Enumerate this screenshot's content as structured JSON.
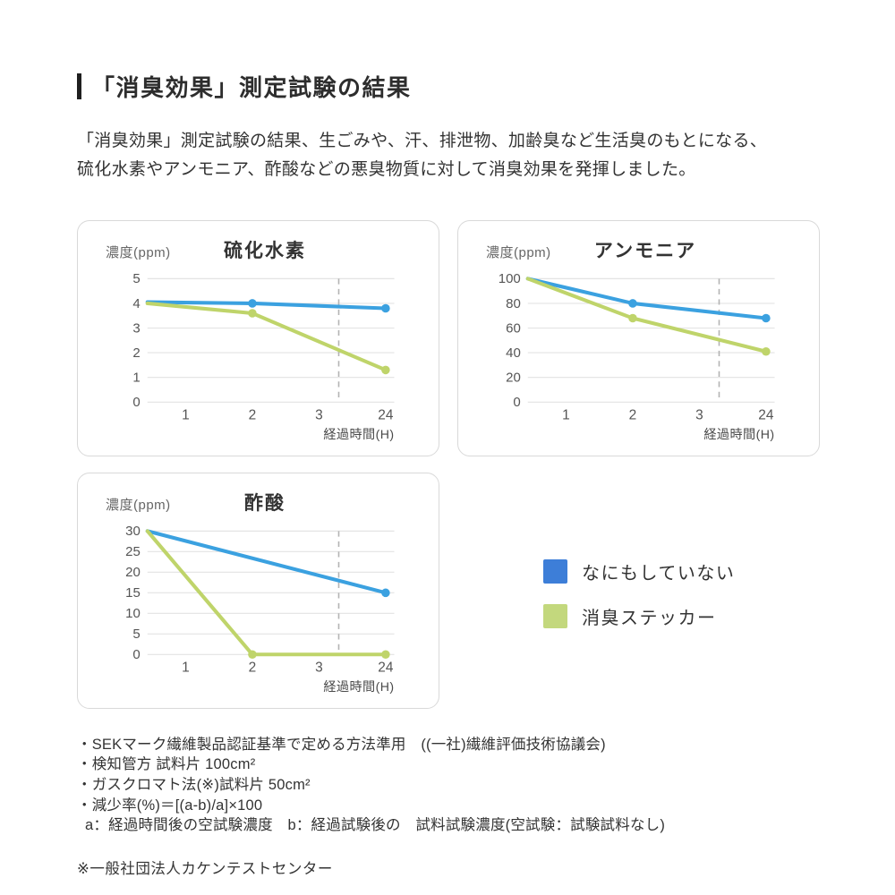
{
  "header": {
    "title": "「消臭効果」測定試験の結果",
    "intro_lines": [
      "「消臭効果」測定試験の結果、生ごみや、汗、排泄物、加齢臭など生活臭のもとになる、",
      "硫化水素やアンモニア、酢酸などの悪臭物質に対して消臭効果を発揮しました。"
    ]
  },
  "legend": {
    "items": [
      {
        "label": "なにもしていない",
        "color": "#3d7ed8"
      },
      {
        "label": "消臭ステッカー",
        "color": "#c3d87d"
      }
    ]
  },
  "colors": {
    "line_blue": "#3ba1e0",
    "line_green": "#bfd46a",
    "gridline": "#e3e3e3",
    "dashed_line": "#b3b3b3",
    "tick_label": "#555555",
    "axis_label": "#4a4a4a"
  },
  "chart_data": [
    {
      "type": "line",
      "title": "硫化水素",
      "ylabel": "濃度(ppm)",
      "xlabel": "経過時間(H)",
      "x_ticks": [
        "1",
        "2",
        "3",
        "24"
      ],
      "y_ticks": [
        5,
        4,
        3,
        2,
        1,
        0
      ],
      "ylim": [
        0,
        5
      ],
      "grid": true,
      "axis_break_after": "3",
      "series": [
        {
          "name": "なにもしていない",
          "color": "#3ba1e0",
          "points": [
            {
              "t": 0,
              "v": 4.05
            },
            {
              "t": 2,
              "v": 4.0,
              "dot": true
            },
            {
              "t": 24,
              "v": 3.8,
              "dot": true
            }
          ]
        },
        {
          "name": "消臭ステッカー",
          "color": "#bfd46a",
          "points": [
            {
              "t": 0,
              "v": 4.0
            },
            {
              "t": 2,
              "v": 3.6,
              "dot": true
            },
            {
              "t": 24,
              "v": 1.3,
              "dot": true
            }
          ]
        }
      ]
    },
    {
      "type": "line",
      "title": "アンモニア",
      "ylabel": "濃度(ppm)",
      "xlabel": "経過時間(H)",
      "x_ticks": [
        "1",
        "2",
        "3",
        "24"
      ],
      "y_ticks": [
        100,
        80,
        60,
        40,
        20,
        0
      ],
      "ylim": [
        0,
        100
      ],
      "grid": true,
      "axis_break_after": "3",
      "series": [
        {
          "name": "なにもしていない",
          "color": "#3ba1e0",
          "points": [
            {
              "t": 0,
              "v": 100
            },
            {
              "t": 2,
              "v": 80,
              "dot": true
            },
            {
              "t": 24,
              "v": 68,
              "dot": true
            }
          ]
        },
        {
          "name": "消臭ステッカー",
          "color": "#bfd46a",
          "points": [
            {
              "t": 0,
              "v": 100
            },
            {
              "t": 2,
              "v": 68,
              "dot": true
            },
            {
              "t": 24,
              "v": 41,
              "dot": true
            }
          ]
        }
      ]
    },
    {
      "type": "line",
      "title": "酢酸",
      "ylabel": "濃度(ppm)",
      "xlabel": "経過時間(H)",
      "x_ticks": [
        "1",
        "2",
        "3",
        "24"
      ],
      "y_ticks": [
        30,
        25,
        20,
        15,
        10,
        5,
        0
      ],
      "ylim": [
        0,
        30
      ],
      "grid": true,
      "axis_break_after": "3",
      "series": [
        {
          "name": "なにもしていない",
          "color": "#3ba1e0",
          "points": [
            {
              "t": 0,
              "v": 30
            },
            {
              "t": 24,
              "v": 15,
              "dot": true
            }
          ]
        },
        {
          "name": "消臭ステッカー",
          "color": "#bfd46a",
          "points": [
            {
              "t": 0,
              "v": 30
            },
            {
              "t": 2,
              "v": 0,
              "dot": true
            },
            {
              "t": 24,
              "v": 0,
              "dot": true
            }
          ]
        }
      ]
    }
  ],
  "notes": {
    "lines": [
      "・SEKマーク繊維製品認証基準で定める方法準用　((一社)繊維評価技術協議会)",
      "・検知管方 試料片 100cm²",
      "・ガスクロマト法(※)試料片 50cm²",
      "・減少率(%)＝[(a-b)/a]×100",
      "a：経過時間後の空試験濃度　b：経過試験後の　試料試験濃度(空試験：試験試料なし)"
    ],
    "footer": "※一般社団法人カケンテストセンター"
  }
}
